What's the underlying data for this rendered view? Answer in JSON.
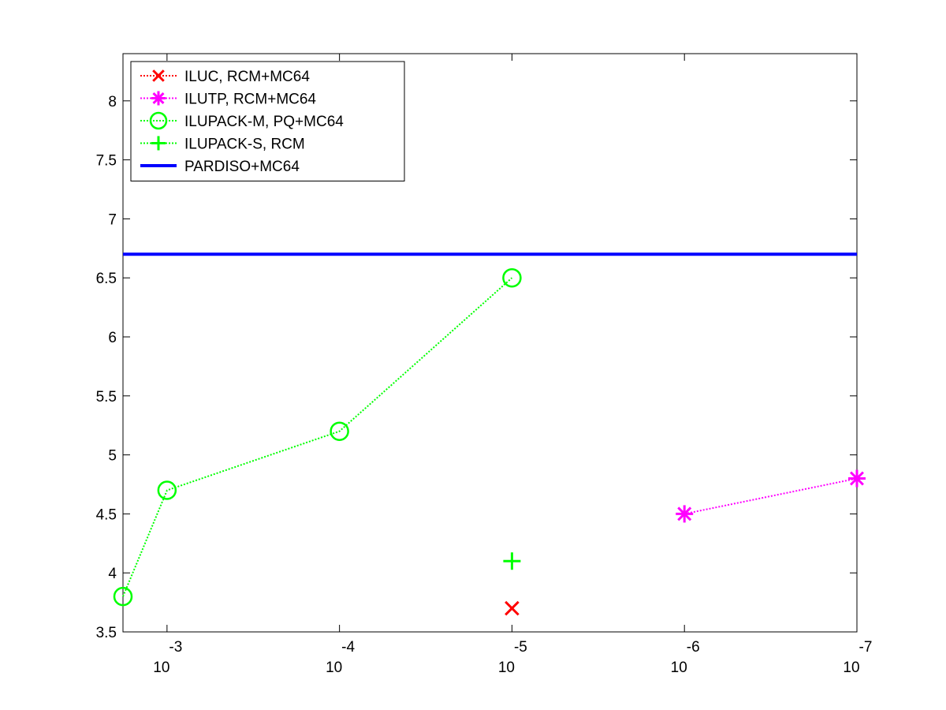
{
  "chart_data": {
    "type": "line",
    "xscale": "log-reversed",
    "xlim": [
      0.0018,
      1e-07
    ],
    "ylim": [
      3.5,
      8.4
    ],
    "grid": false,
    "legend_position": "top-left",
    "x_ticks": [
      {
        "value": 0.001,
        "base": "10",
        "exponent": "-3"
      },
      {
        "value": 0.0001,
        "base": "10",
        "exponent": "-4"
      },
      {
        "value": 1e-05,
        "base": "10",
        "exponent": "-5"
      },
      {
        "value": 1e-06,
        "base": "10",
        "exponent": "-6"
      },
      {
        "value": 1e-07,
        "base": "10",
        "exponent": "-7"
      }
    ],
    "y_ticks": [
      {
        "value": 3.5,
        "label": "3.5"
      },
      {
        "value": 4,
        "label": "4"
      },
      {
        "value": 4.5,
        "label": "4.5"
      },
      {
        "value": 5,
        "label": "5"
      },
      {
        "value": 5.5,
        "label": "5.5"
      },
      {
        "value": 6,
        "label": "6"
      },
      {
        "value": 6.5,
        "label": "6.5"
      },
      {
        "value": 7,
        "label": "7"
      },
      {
        "value": 7.5,
        "label": "7.5"
      },
      {
        "value": 8,
        "label": "8"
      }
    ],
    "series": [
      {
        "name": "ILUC, RCM+MC64",
        "color": "#ff0000",
        "marker": "x",
        "line": "dotted",
        "x": [
          1e-05
        ],
        "y": [
          3.7
        ]
      },
      {
        "name": "ILUTP, RCM+MC64",
        "color": "#ff00ff",
        "marker": "asterisk",
        "line": "dotted",
        "x": [
          1e-06,
          1e-07
        ],
        "y": [
          4.5,
          4.8
        ]
      },
      {
        "name": "ILUPACK-M, PQ+MC64",
        "color": "#00ff00",
        "marker": "circle",
        "line": "dotted",
        "x": [
          0.0018,
          0.001,
          0.0001,
          1e-05
        ],
        "y": [
          3.8,
          4.7,
          5.2,
          6.5
        ]
      },
      {
        "name": "ILUPACK-S, RCM",
        "color": "#00ff00",
        "marker": "plus",
        "line": "dotted",
        "x": [
          1e-05
        ],
        "y": [
          4.1
        ]
      },
      {
        "name": "PARDISO+MC64",
        "color": "#0000ff",
        "marker": "none",
        "line": "solid",
        "x": [
          0.0018,
          1e-07
        ],
        "y": [
          6.7,
          6.7
        ]
      }
    ]
  }
}
